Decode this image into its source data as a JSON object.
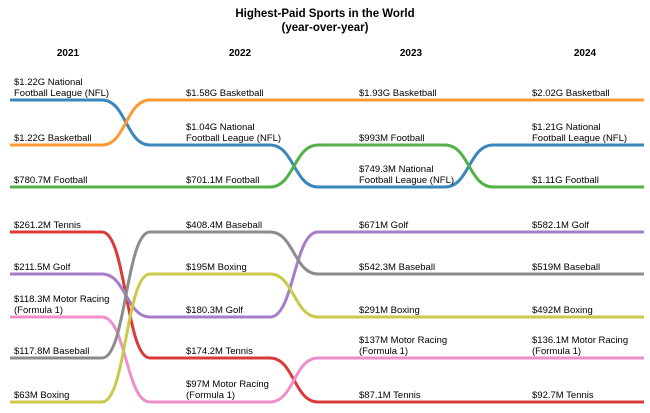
{
  "chart_data": {
    "type": "bump",
    "title": "Highest-Paid Sports in the World",
    "subtitle": "(year-over-year)",
    "years": [
      "2021",
      "2022",
      "2023",
      "2024"
    ],
    "colors": {
      "Basketball": "#ff9933",
      "National Football League (NFL)": "#3b86bd",
      "Football": "#55b04a",
      "Tennis": "#d93b3b",
      "Golf": "#a77cc8",
      "Motor Racing (Formula 1)": "#ee8fcb",
      "Baseball": "#8c8c8c",
      "Boxing": "#c9c94a"
    },
    "groups": [
      {
        "name": "top",
        "entries": [
          [
            "$1.22G National Football League (NFL)",
            "$1.58G Basketball",
            "$1.93G Basketball",
            "$2.02G Basketball"
          ],
          [
            "$1.22G Basketball",
            "$1.04G National Football League (NFL)",
            "$993M Football",
            "$1.21G National Football League (NFL)"
          ],
          [
            "$780.7M Football",
            "$701.1M Football",
            "$749.3M National Football League (NFL)",
            "$1.11G Football"
          ]
        ],
        "series": [
          {
            "name": "National Football League (NFL)",
            "values": [
              "$1.22G",
              "$1.04G",
              "$749.3M",
              "$1.21G"
            ],
            "rank": [
              1,
              2,
              3,
              2
            ]
          },
          {
            "name": "Basketball",
            "values": [
              "$1.22G",
              "$1.58G",
              "$1.93G",
              "$2.02G"
            ],
            "rank": [
              2,
              1,
              1,
              1
            ]
          },
          {
            "name": "Football",
            "values": [
              "$780.7M",
              "$701.1M",
              "$993M",
              "$1.11G"
            ],
            "rank": [
              3,
              3,
              2,
              3
            ]
          }
        ]
      },
      {
        "name": "bottom",
        "entries": [
          [
            "$261.2M Tennis",
            "$408.4M Baseball",
            "$671M Golf",
            "$582.1M Golf"
          ],
          [
            "$211.5M Golf",
            "$195M Boxing",
            "$542.3M Baseball",
            "$519M Baseball"
          ],
          [
            "$118.3M Motor Racing (Formula 1)",
            "$180.3M Golf",
            "$291M Boxing",
            "$492M Boxing"
          ],
          [
            "$117.8M Baseball",
            "$174.2M Tennis",
            "$137M Motor Racing (Formula 1)",
            "$136.1M Motor Racing (Formula 1)"
          ],
          [
            "$63M Boxing",
            "$97M Motor Racing (Formula 1)",
            "$87.1M Tennis",
            "$92.7M Tennis"
          ]
        ],
        "series": [
          {
            "name": "Tennis",
            "values": [
              "$261.2M",
              "$174.2M",
              "$87.1M",
              "$92.7M"
            ],
            "rank": [
              1,
              4,
              5,
              5
            ]
          },
          {
            "name": "Golf",
            "values": [
              "$211.5M",
              "$180.3M",
              "$671M",
              "$582.1M"
            ],
            "rank": [
              2,
              3,
              1,
              1
            ]
          },
          {
            "name": "Motor Racing (Formula 1)",
            "values": [
              "$118.3M",
              "$97M",
              "$137M",
              "$136.1M"
            ],
            "rank": [
              3,
              5,
              4,
              4
            ]
          },
          {
            "name": "Baseball",
            "values": [
              "$117.8M",
              "$408.4M",
              "$542.3M",
              "$519M"
            ],
            "rank": [
              4,
              1,
              2,
              2
            ]
          },
          {
            "name": "Boxing",
            "values": [
              "$63M",
              "$195M",
              "$291M",
              "$492M"
            ],
            "rank": [
              5,
              2,
              3,
              3
            ]
          }
        ]
      }
    ]
  }
}
